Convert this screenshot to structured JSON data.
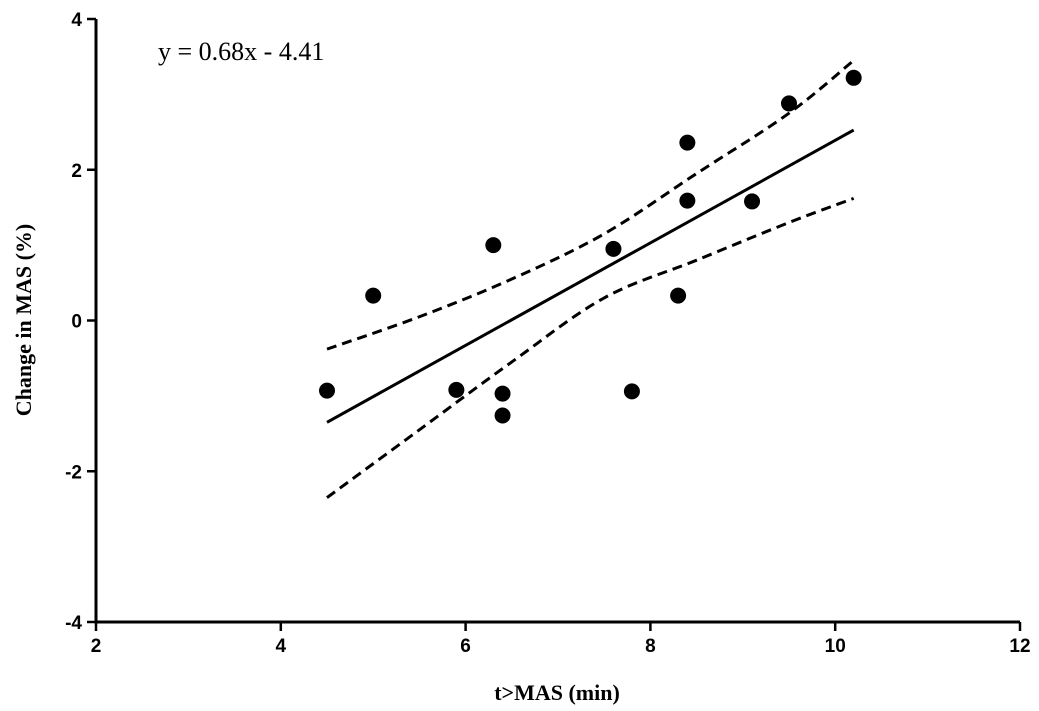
{
  "chart_data": {
    "type": "scatter",
    "xlabel": "t>MAS (min)",
    "ylabel": "Change in MAS (%)",
    "annotation": "y = 0.68x - 4.41",
    "xlim": [
      2,
      12
    ],
    "ylim": [
      -4,
      4
    ],
    "xticks": [
      2,
      4,
      6,
      8,
      10,
      12
    ],
    "yticks": [
      -4,
      -2,
      0,
      2,
      4
    ],
    "grid": false,
    "points": [
      {
        "x": 4.5,
        "y": -0.93
      },
      {
        "x": 5.0,
        "y": 0.33
      },
      {
        "x": 5.9,
        "y": -0.92
      },
      {
        "x": 6.3,
        "y": 1.0
      },
      {
        "x": 6.4,
        "y": -0.97
      },
      {
        "x": 6.4,
        "y": -1.26
      },
      {
        "x": 7.6,
        "y": 0.95
      },
      {
        "x": 7.8,
        "y": -0.94
      },
      {
        "x": 8.3,
        "y": 0.33
      },
      {
        "x": 8.4,
        "y": 2.36
      },
      {
        "x": 8.4,
        "y": 1.59
      },
      {
        "x": 9.1,
        "y": 1.58
      },
      {
        "x": 9.5,
        "y": 2.88
      },
      {
        "x": 10.2,
        "y": 3.22
      }
    ],
    "regression": {
      "slope": 0.68,
      "intercept": -4.41,
      "x_range": [
        4.5,
        10.2
      ]
    },
    "confidence_upper": [
      {
        "x": 4.5,
        "y": -0.38
      },
      {
        "x": 5.5,
        "y": 0.05
      },
      {
        "x": 6.5,
        "y": 0.55
      },
      {
        "x": 7.5,
        "y": 1.15
      },
      {
        "x": 8.5,
        "y": 1.95
      },
      {
        "x": 9.5,
        "y": 2.75
      },
      {
        "x": 10.2,
        "y": 3.45
      }
    ],
    "confidence_lower": [
      {
        "x": 4.5,
        "y": -2.35
      },
      {
        "x": 5.5,
        "y": -1.45
      },
      {
        "x": 6.5,
        "y": -0.55
      },
      {
        "x": 7.5,
        "y": 0.3
      },
      {
        "x": 8.5,
        "y": 0.8
      },
      {
        "x": 9.5,
        "y": 1.3
      },
      {
        "x": 10.2,
        "y": 1.62
      }
    ]
  }
}
